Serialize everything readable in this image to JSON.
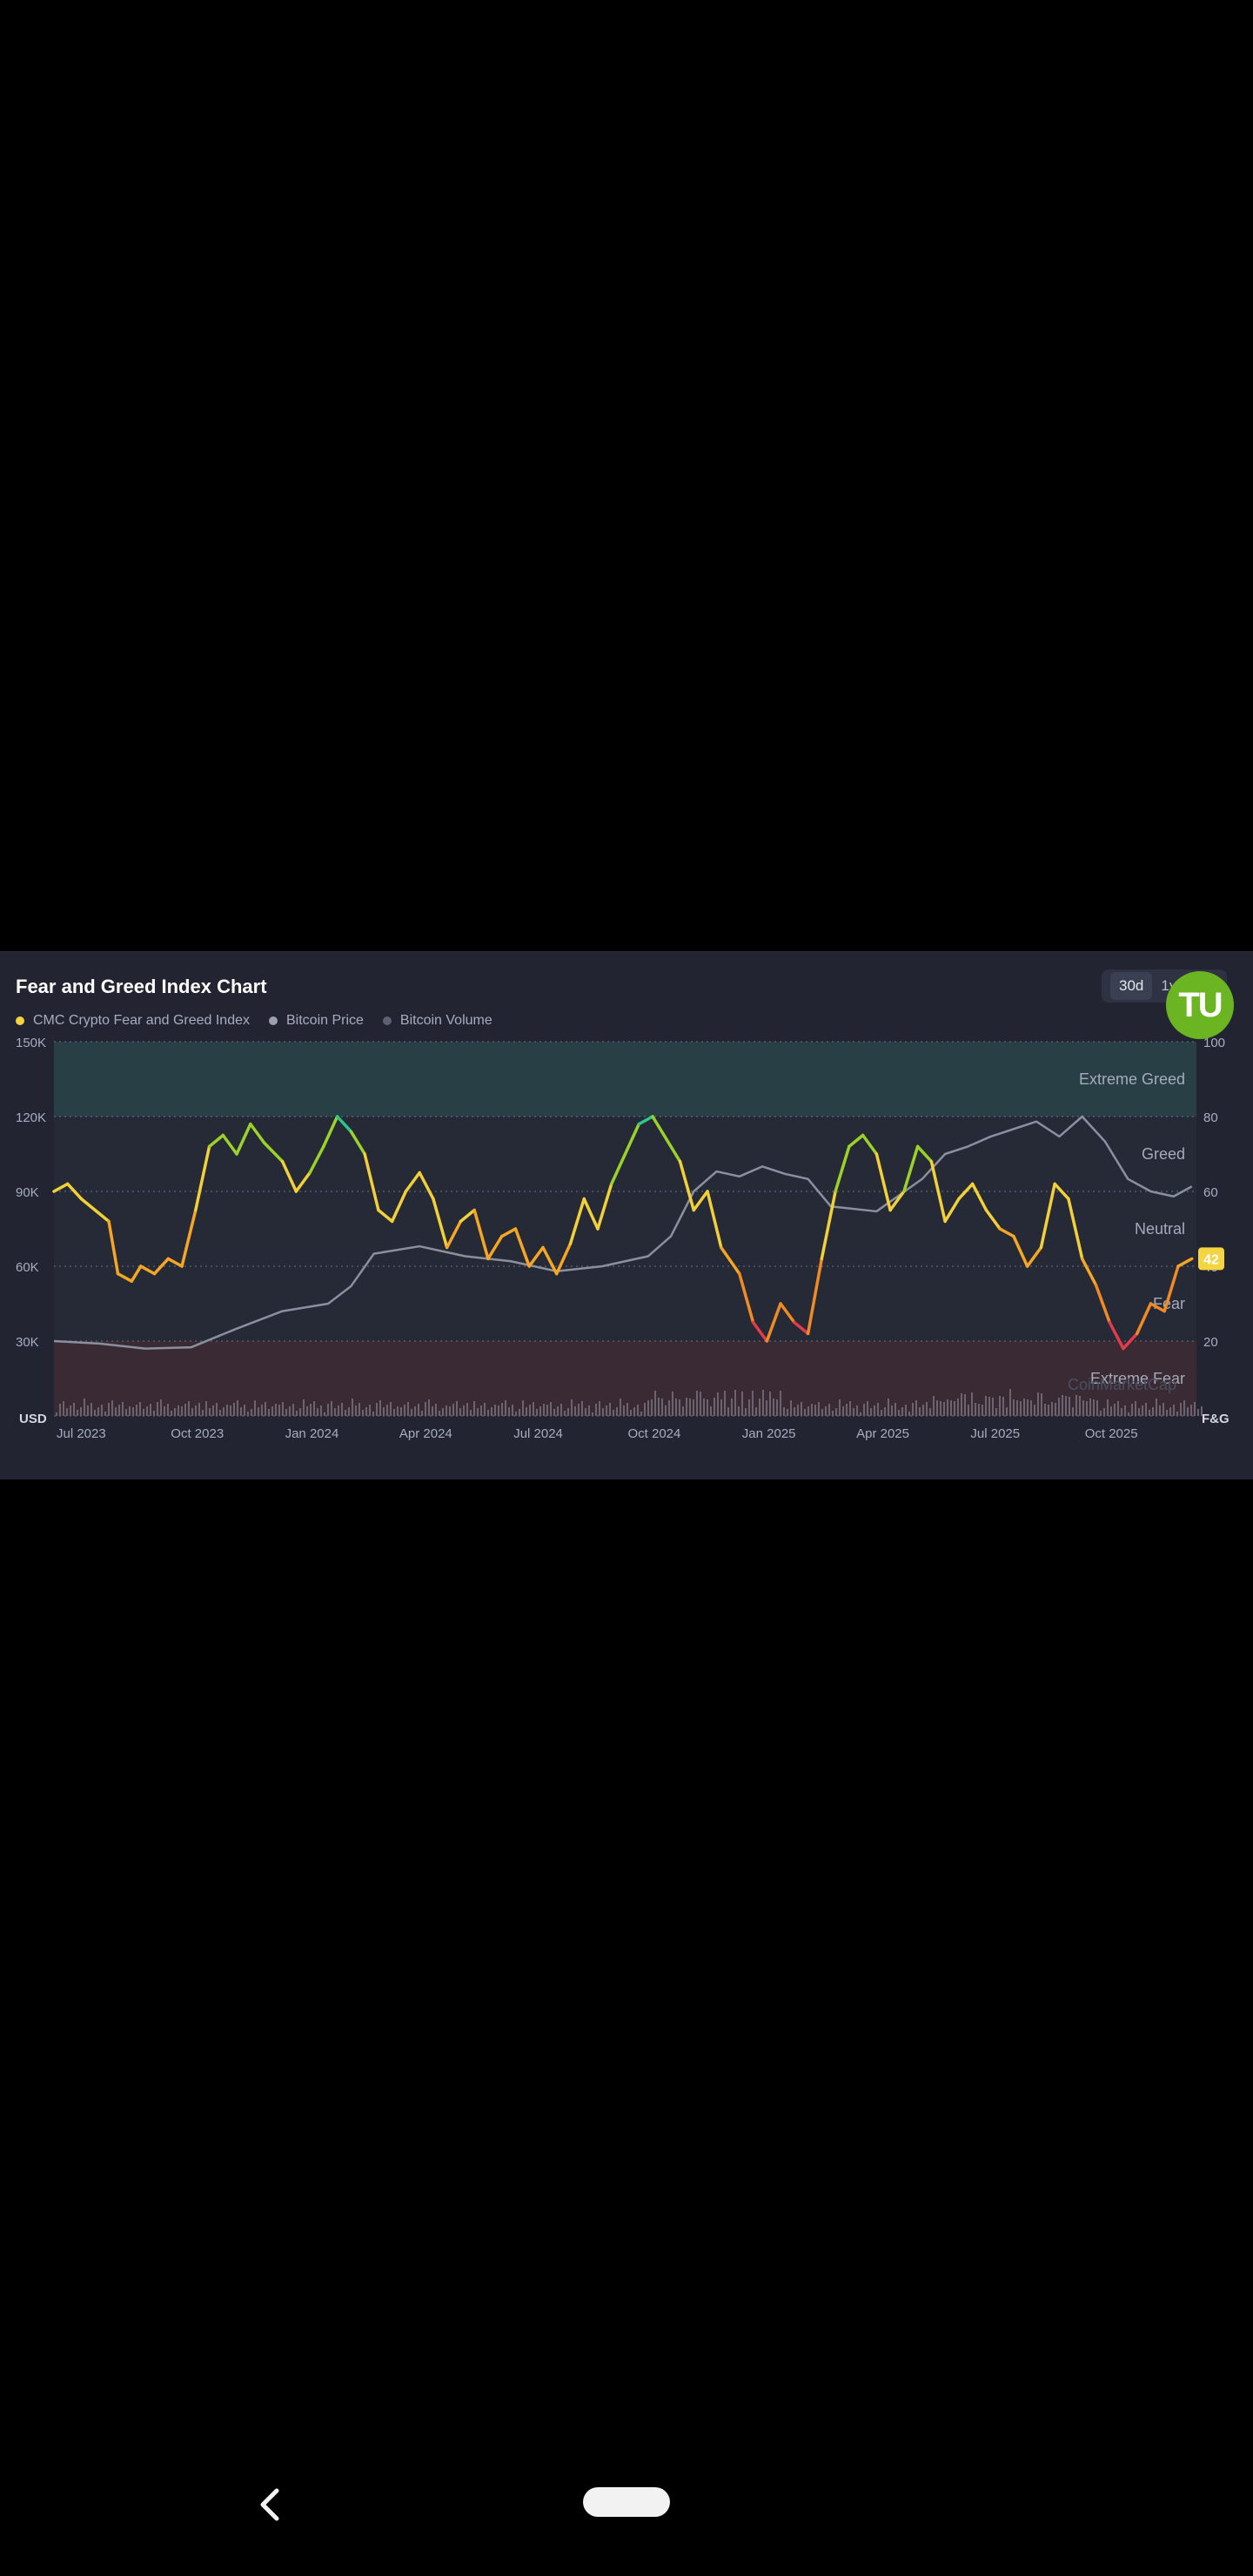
{
  "title": "Fear and Greed Index Chart",
  "legend": [
    {
      "label": "CMC Crypto Fear and Greed Index",
      "color": "#f5d442"
    },
    {
      "label": "Bitcoin Price",
      "color": "#9aa0ad"
    },
    {
      "label": "Bitcoin Volume",
      "color": "#5d6272"
    }
  ],
  "range_tabs": [
    "30d",
    "1y"
  ],
  "logo_text": "TU",
  "watermark": "CoinMarketCap",
  "chart_data": {
    "type": "line",
    "left_axis_label": "USD",
    "right_axis_label": "F&G",
    "left_ticks": [
      "150K",
      "120K",
      "90K",
      "60K",
      "30K"
    ],
    "right_ticks": [
      "100",
      "80",
      "60",
      "40",
      "20"
    ],
    "x_ticks": [
      "Jul 2023",
      "Oct 2023",
      "Jan 2024",
      "Apr 2024",
      "Jul 2024",
      "Oct 2024",
      "Jan 2025",
      "Apr 2025",
      "Jul 2025",
      "Oct 2025"
    ],
    "price_range": [
      0,
      150000
    ],
    "index_range": [
      0,
      100
    ],
    "zones": [
      {
        "label": "Extreme Greed",
        "from": 80,
        "to": 100,
        "color": "#284045"
      },
      {
        "label": "Greed",
        "from": 60,
        "to": 80
      },
      {
        "label": "Neutral",
        "from": 40,
        "to": 60
      },
      {
        "label": "Fear",
        "from": 20,
        "to": 40
      },
      {
        "label": "Extreme Fear",
        "from": 0,
        "to": 20,
        "color": "#3a2a34"
      }
    ],
    "current_value": "42",
    "series": [
      {
        "name": "CMC Crypto Fear and Greed Index",
        "x": [
          2023.5,
          2023.53,
          2023.56,
          2023.59,
          2023.62,
          2023.64,
          2023.67,
          2023.69,
          2023.72,
          2023.75,
          2023.78,
          2023.81,
          2023.84,
          2023.87,
          2023.9,
          2023.93,
          2023.96,
          2024.0,
          2024.03,
          2024.06,
          2024.09,
          2024.12,
          2024.15,
          2024.18,
          2024.21,
          2024.24,
          2024.27,
          2024.3,
          2024.33,
          2024.36,
          2024.39,
          2024.42,
          2024.45,
          2024.48,
          2024.51,
          2024.54,
          2024.57,
          2024.6,
          2024.63,
          2024.66,
          2024.69,
          2024.72,
          2024.75,
          2024.78,
          2024.81,
          2024.84,
          2024.87,
          2024.9,
          2024.93,
          2024.96,
          2025.0,
          2025.03,
          2025.06,
          2025.09,
          2025.12,
          2025.15,
          2025.18,
          2025.21,
          2025.24,
          2025.27,
          2025.3,
          2025.33,
          2025.36,
          2025.39,
          2025.42,
          2025.45,
          2025.48,
          2025.51,
          2025.54,
          2025.57,
          2025.6,
          2025.63,
          2025.66,
          2025.69,
          2025.72,
          2025.75,
          2025.78,
          2025.81,
          2025.84,
          2025.87,
          2025.9,
          2025.93,
          2025.96,
          2025.99
        ],
        "values": [
          60,
          62,
          58,
          55,
          52,
          38,
          36,
          40,
          38,
          42,
          40,
          55,
          72,
          75,
          70,
          78,
          73,
          68,
          60,
          65,
          72,
          80,
          76,
          70,
          55,
          52,
          60,
          65,
          58,
          45,
          52,
          55,
          42,
          48,
          50,
          40,
          45,
          38,
          46,
          58,
          50,
          62,
          70,
          78,
          80,
          74,
          68,
          55,
          60,
          45,
          38,
          25,
          20,
          30,
          25,
          22,
          42,
          60,
          72,
          75,
          70,
          55,
          60,
          72,
          68,
          52,
          58,
          62,
          55,
          50,
          48,
          40,
          45,
          62,
          58,
          42,
          35,
          25,
          18,
          22,
          30,
          28,
          40,
          42
        ]
      },
      {
        "name": "Bitcoin Price",
        "x": [
          2023.5,
          2023.6,
          2023.7,
          2023.8,
          2023.9,
          2024.0,
          2024.1,
          2024.15,
          2024.2,
          2024.3,
          2024.4,
          2024.5,
          2024.6,
          2024.7,
          2024.8,
          2024.85,
          2024.9,
          2024.95,
          2025.0,
          2025.05,
          2025.1,
          2025.15,
          2025.2,
          2025.3,
          2025.4,
          2025.45,
          2025.5,
          2025.55,
          2025.6,
          2025.65,
          2025.7,
          2025.75,
          2025.8,
          2025.85,
          2025.9,
          2025.95,
          2025.99
        ],
        "values": [
          30000,
          29000,
          27000,
          27500,
          35000,
          42000,
          45000,
          52000,
          65000,
          68000,
          64000,
          62000,
          58000,
          60000,
          64000,
          72000,
          90000,
          98000,
          96000,
          100000,
          97000,
          95000,
          84000,
          82000,
          95000,
          105000,
          108000,
          112000,
          115000,
          118000,
          112000,
          120000,
          110000,
          95000,
          90000,
          88000,
          92000
        ]
      }
    ]
  }
}
